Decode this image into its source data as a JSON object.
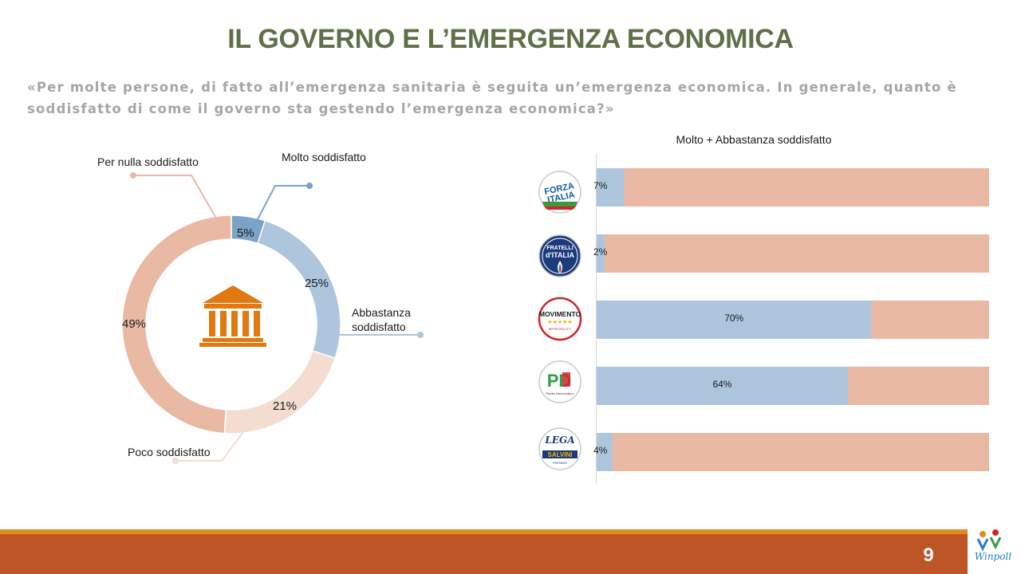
{
  "title": "IL GOVERNO E L’EMERGENZA ECONOMICA",
  "question": "«Per molte persone, di fatto all’emergenza sanitaria è seguita un’emergenza economica. In generale, quanto è soddisfatto di come il governo sta gestendo l’emergenza economica?»",
  "page_number": "9",
  "colors": {
    "title": "#5f7049",
    "molto": "#7ba3c8",
    "abbastanza": "#adc6dd",
    "poco": "#f4dcd0",
    "per_nulla": "#eab9a3",
    "footer": "#bd5527",
    "footer_accent": "#e38b1e"
  },
  "icons": {
    "donut_center": "government-building-icon",
    "brand": "winpoll-logo"
  },
  "chart_data": [
    {
      "type": "pie",
      "variant": "donut",
      "categories": [
        "Molto soddisfatto",
        "Abbastanza soddisfatto",
        "Poco soddisfatto",
        "Per nulla soddisfatto"
      ],
      "values": [
        5,
        25,
        21,
        49
      ],
      "labels": [
        "5%",
        "25%",
        "21%",
        "49%"
      ],
      "legend": "callout labels"
    },
    {
      "type": "bar",
      "orientation": "horizontal",
      "stacked": true,
      "title": "Molto + Abbastanza soddisfatto",
      "categories": [
        "Forza Italia",
        "Fratelli d'Italia",
        "Movimento 5 Stelle",
        "Partito Democratico",
        "Lega Salvini Premier"
      ],
      "values": [
        7,
        2,
        70,
        64,
        4
      ],
      "labels": [
        "7%",
        "2%",
        "70%",
        "64%",
        "4%"
      ],
      "xlim": [
        0,
        100
      ]
    }
  ],
  "logos": {
    "fi": {
      "text1": "FORZA",
      "text2": "ITALIA"
    },
    "fdi": {
      "text1": "FRATELLI",
      "text2": "d'ITALIA"
    },
    "m5s": {
      "text1": "MOVIMENTO",
      "text2": "★★★★★",
      "text3": "BEPPEGRILLO.IT"
    },
    "pd": {
      "text1": "PD",
      "text2": "Partito Democratico"
    },
    "lega": {
      "text1": "LEGA",
      "text2": "SALVINI",
      "text3": "PREMIER"
    },
    "brand": {
      "text": "Winpoll"
    }
  }
}
